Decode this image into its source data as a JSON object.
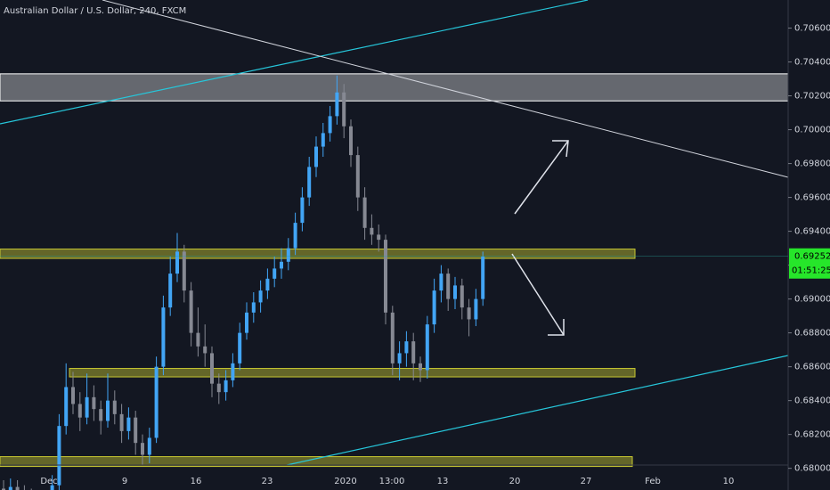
{
  "chart_data": {
    "type": "candlestick",
    "title": "Australian Dollar / U.S. Dollar, 240, FXCM",
    "up_color": "#42a5f5",
    "down_color": "#868993",
    "open": [
      0.6788,
      0.6786,
      0.6789,
      0.6787,
      0.6784,
      0.6781,
      0.6779,
      0.6783,
      0.679,
      0.6825,
      0.6848,
      0.6838,
      0.683,
      0.6842,
      0.6835,
      0.6828,
      0.684,
      0.6832,
      0.6822,
      0.683,
      0.6815,
      0.6808,
      0.6818,
      0.686,
      0.6895,
      0.6915,
      0.6928,
      0.6905,
      0.688,
      0.6872,
      0.6868,
      0.685,
      0.6845,
      0.6852,
      0.6862,
      0.688,
      0.6892,
      0.6898,
      0.6905,
      0.6912,
      0.6918,
      0.6922,
      0.693,
      0.6945,
      0.696,
      0.6978,
      0.699,
      0.6998,
      0.7008,
      0.7022,
      0.7002,
      0.6985,
      0.696,
      0.6942,
      0.6938,
      0.6935,
      0.6892,
      0.6862,
      0.6868,
      0.6875,
      0.6862,
      0.6858,
      0.6885,
      0.6905,
      0.6915,
      0.69,
      0.6908,
      0.6895,
      0.6888,
      0.69
    ],
    "high": [
      0.6793,
      0.6794,
      0.6793,
      0.679,
      0.6788,
      0.6785,
      0.6787,
      0.6796,
      0.6832,
      0.6862,
      0.6857,
      0.6845,
      0.6856,
      0.6849,
      0.684,
      0.6856,
      0.6846,
      0.6838,
      0.6836,
      0.6834,
      0.682,
      0.6824,
      0.6866,
      0.6902,
      0.6925,
      0.6939,
      0.6932,
      0.691,
      0.6895,
      0.6885,
      0.6872,
      0.6856,
      0.6858,
      0.6868,
      0.6886,
      0.6898,
      0.6904,
      0.6911,
      0.6918,
      0.6925,
      0.693,
      0.6936,
      0.6951,
      0.6966,
      0.6984,
      0.6996,
      0.7004,
      0.7014,
      0.7032,
      0.7027,
      0.7006,
      0.699,
      0.6966,
      0.695,
      0.6944,
      0.6938,
      0.6896,
      0.6875,
      0.6881,
      0.688,
      0.6866,
      0.689,
      0.6912,
      0.692,
      0.6918,
      0.6913,
      0.6912,
      0.69,
      0.6906,
      0.6928
    ],
    "low": [
      0.6781,
      0.6782,
      0.6783,
      0.6779,
      0.6776,
      0.6774,
      0.6775,
      0.6779,
      0.6787,
      0.682,
      0.6832,
      0.6822,
      0.6826,
      0.6828,
      0.682,
      0.6824,
      0.6826,
      0.6815,
      0.6817,
      0.6808,
      0.6802,
      0.6803,
      0.6815,
      0.6855,
      0.689,
      0.691,
      0.6898,
      0.6872,
      0.6866,
      0.686,
      0.6842,
      0.6838,
      0.684,
      0.6848,
      0.6858,
      0.6876,
      0.6886,
      0.6892,
      0.69,
      0.6907,
      0.6912,
      0.6917,
      0.6926,
      0.694,
      0.6955,
      0.6972,
      0.6984,
      0.6993,
      0.7003,
      0.6995,
      0.6978,
      0.6952,
      0.6935,
      0.6932,
      0.6928,
      0.6885,
      0.6855,
      0.6852,
      0.686,
      0.6852,
      0.6851,
      0.6853,
      0.688,
      0.6898,
      0.6893,
      0.6894,
      0.6888,
      0.6878,
      0.6884,
      0.6896
    ],
    "close": [
      0.6786,
      0.6789,
      0.6787,
      0.6784,
      0.6781,
      0.6779,
      0.6783,
      0.679,
      0.6825,
      0.6848,
      0.6838,
      0.683,
      0.6842,
      0.6835,
      0.6828,
      0.684,
      0.6832,
      0.6822,
      0.683,
      0.6815,
      0.6808,
      0.6818,
      0.686,
      0.6895,
      0.6915,
      0.6928,
      0.6905,
      0.688,
      0.6872,
      0.6868,
      0.685,
      0.6845,
      0.6852,
      0.6862,
      0.688,
      0.6892,
      0.6898,
      0.6905,
      0.6912,
      0.6918,
      0.6922,
      0.693,
      0.6945,
      0.696,
      0.6978,
      0.699,
      0.6998,
      0.7008,
      0.7022,
      0.7002,
      0.6985,
      0.696,
      0.6942,
      0.6938,
      0.6935,
      0.6892,
      0.6862,
      0.6868,
      0.6875,
      0.6862,
      0.6858,
      0.6885,
      0.6905,
      0.6915,
      0.69,
      0.6908,
      0.6895,
      0.6888,
      0.69,
      0.6925
    ],
    "xticks": [
      "Dec",
      "9",
      "16",
      "23",
      "2020",
      "13:00",
      "13",
      "20",
      "27",
      "Feb",
      "10"
    ],
    "ylim": [
      0.67872,
      0.70766
    ],
    "yticks": [
      {
        "value": 0.706,
        "label": "0.70600"
      },
      {
        "value": 0.704,
        "label": "0.70400"
      },
      {
        "value": 0.702,
        "label": "0.70200"
      },
      {
        "value": 0.7,
        "label": "0.70000"
      },
      {
        "value": 0.698,
        "label": "0.69800"
      },
      {
        "value": 0.696,
        "label": "0.69600"
      },
      {
        "value": 0.694,
        "label": "0.69400"
      },
      {
        "value": 0.692,
        "label": "0.69200"
      },
      {
        "value": 0.69,
        "label": "0.69000"
      },
      {
        "value": 0.688,
        "label": "0.68800"
      },
      {
        "value": 0.686,
        "label": "0.68600"
      },
      {
        "value": 0.684,
        "label": "0.68400"
      },
      {
        "value": 0.682,
        "label": "0.68200"
      },
      {
        "value": 0.68,
        "label": "0.68000"
      }
    ],
    "last_price": 0.69252,
    "countdown": "01:51:25",
    "zones": [
      {
        "top": 0.7033,
        "bottom": 0.7017,
        "color": "#ffffff"
      },
      {
        "top": 0.69295,
        "bottom": 0.6924,
        "color": "#c8c832"
      },
      {
        "top": 0.6859,
        "bottom": 0.6854,
        "color": "#c8c832"
      },
      {
        "top": 0.68069,
        "bottom": 0.68011,
        "color": "#c8c832"
      }
    ]
  }
}
